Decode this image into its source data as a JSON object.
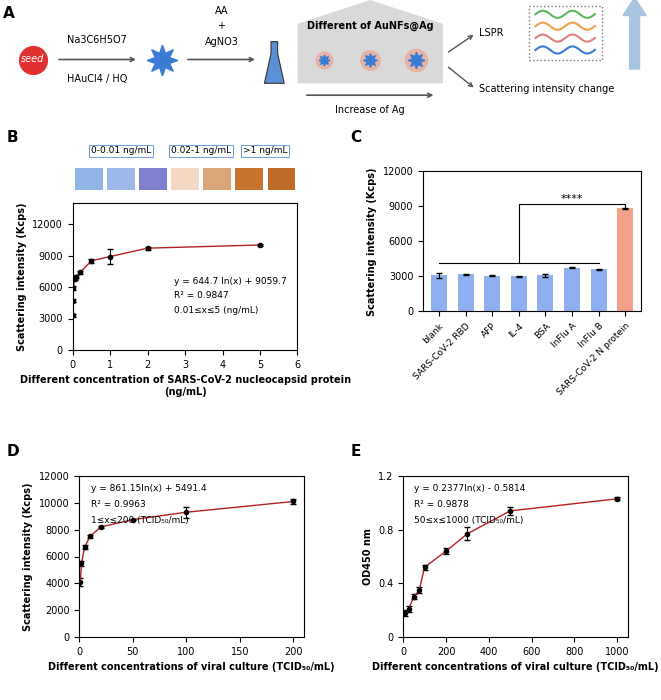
{
  "panel_A": {
    "label": "A",
    "seed": "seed",
    "step_1": [
      "Na3C6H5O7",
      "HAuCl4 / HQ"
    ],
    "step_2": [
      "AA",
      "+",
      "AgNO3"
    ],
    "box_title": "Different of AuNFs@Ag",
    "arrow_label": "Increase of Ag",
    "outputs": [
      "LSPR",
      "Scattering intensity change"
    ]
  },
  "chart_data": [
    {
      "type": "line",
      "title": "B",
      "x": [
        0,
        0.01,
        0.02,
        0.05,
        0.1,
        0.2,
        0.5,
        1,
        2,
        5
      ],
      "values": [
        3300,
        4700,
        5900,
        6800,
        7000,
        7400,
        8500,
        8900,
        9700,
        10000
      ],
      "errors": [
        150,
        150,
        150,
        150,
        150,
        150,
        200,
        700,
        150,
        100
      ],
      "color": "#b22222",
      "marker": "o",
      "xlim": [
        0,
        6
      ],
      "xticks": [
        0,
        1,
        2,
        3,
        4,
        5,
        6
      ],
      "ylim": [
        0,
        14000
      ],
      "yticks": [
        0,
        3000,
        6000,
        9000,
        12000
      ],
      "x_label": "Different concentration of SARS-CoV-2 nucleocapsid protein (ng/mL)",
      "y_label": "Scattering intensity (Kcps)",
      "annotations": [
        "y = 644.7 ln(x) + 9059.7",
        "R² = 0.9847",
        "0.01≤x≤5 (ng/mL)"
      ],
      "color_groups": [
        {
          "label": "0-0.01 ng/mL",
          "colors": [
            "#8fb4e6",
            "#9db9ea",
            "#7f7fd0"
          ]
        },
        {
          "label": "0.02-1 ng/mL",
          "colors": [
            "#f3d9c4",
            "#dba57a"
          ]
        },
        {
          "label": ">1 ng/mL",
          "colors": [
            "#c8732e",
            "#c06a28"
          ]
        }
      ]
    },
    {
      "type": "bar",
      "title": "C",
      "categories": [
        "blank",
        "SARS-CoV-2 RBD",
        "AFP",
        "IL-4",
        "BSA",
        "InFlu A",
        "InFlu B",
        "SARS-CoV-2 N protein"
      ],
      "values": [
        3100,
        3200,
        3050,
        3000,
        3100,
        3750,
        3600,
        8850
      ],
      "errors": [
        200,
        50,
        50,
        50,
        150,
        50,
        80,
        50
      ],
      "colors": [
        "#8fb0f0",
        "#8fb0f0",
        "#8fb0f0",
        "#8fb0f0",
        "#8fb0f0",
        "#8fb0f0",
        "#8fb0f0",
        "#f4a08a"
      ],
      "ylim": [
        0,
        12000
      ],
      "yticks": [
        0,
        3000,
        6000,
        9000,
        12000
      ],
      "y_label": "Scattering intensity (Kcps)",
      "annotations": [
        "****"
      ]
    },
    {
      "type": "line",
      "title": "D",
      "x": [
        1,
        2,
        5,
        10,
        20,
        50,
        100,
        200
      ],
      "values": [
        4100,
        5500,
        6700,
        7500,
        8200,
        8750,
        9300,
        10100
      ],
      "errors": [
        300,
        200,
        150,
        100,
        80,
        60,
        400,
        150
      ],
      "color": "#b22222",
      "marker": "o",
      "xlim": [
        0,
        210
      ],
      "xticks": [
        0,
        50,
        100,
        150,
        200
      ],
      "ylim": [
        0,
        12000
      ],
      "yticks": [
        0,
        2000,
        4000,
        6000,
        8000,
        10000,
        12000
      ],
      "x_label": "Different concentrations of viral culture (TCID₅₀/mL)",
      "y_label": "Scattering intensity (Kcps)",
      "annotations": [
        "y = 861.15ln(x) + 5491.4",
        "R² = 0.9963",
        "1≤x≤200 (TCID₅₀/mL)"
      ]
    },
    {
      "type": "line",
      "title": "E",
      "x": [
        10,
        25,
        50,
        75,
        100,
        200,
        300,
        500,
        1000
      ],
      "values": [
        0.18,
        0.21,
        0.3,
        0.35,
        0.52,
        0.64,
        0.77,
        0.94,
        1.03
      ],
      "errors": [
        0.02,
        0.02,
        0.02,
        0.02,
        0.02,
        0.02,
        0.05,
        0.03,
        0.01
      ],
      "color": "#b22222",
      "marker": "o",
      "xlim": [
        0,
        1050
      ],
      "xticks": [
        0,
        200,
        400,
        600,
        800,
        1000
      ],
      "ylim": [
        0,
        1.2
      ],
      "yticks": [
        0,
        0.4,
        0.8,
        1.2
      ],
      "x_label": "Different concentrations of viral culture (TCID₅₀/mL)",
      "y_label": "OD450 nm",
      "annotations": [
        "y = 0.2377ln(x) - 0.5814",
        "R² = 0.9878",
        "50≤x≤1000 (TCID₅₀/mL)"
      ]
    }
  ]
}
